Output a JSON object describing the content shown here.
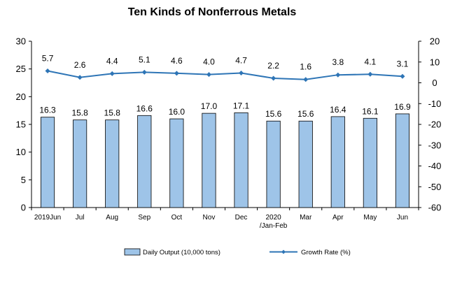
{
  "chart_data": {
    "type": "bar",
    "title": "Ten Kinds of Nonferrous Metals",
    "categories": [
      "2019Jun",
      "Jul",
      "Aug",
      "Sep",
      "Oct",
      "Nov",
      "Dec",
      "2020\n/Jan-Feb",
      "Mar",
      "Apr",
      "May",
      "Jun"
    ],
    "series": [
      {
        "name": "Daily Output (10,000 tons)",
        "type": "bar",
        "axis": "left",
        "values": [
          16.3,
          15.8,
          15.8,
          16.6,
          16.0,
          17.0,
          17.1,
          15.6,
          15.6,
          16.4,
          16.1,
          16.9
        ],
        "color": "#9ec4e8",
        "labels": [
          "16.3",
          "15.8",
          "15.8",
          "16.6",
          "16.0",
          "17.0",
          "17.1",
          "15.6",
          "15.6",
          "16.4",
          "16.1",
          "16.9"
        ]
      },
      {
        "name": "Growth Rate (%)",
        "type": "line",
        "axis": "right",
        "values": [
          5.7,
          2.6,
          4.4,
          5.1,
          4.6,
          4.0,
          4.7,
          2.2,
          1.6,
          3.8,
          4.1,
          3.1
        ],
        "color": "#2e75b6",
        "labels": [
          "5.7",
          "2.6",
          "4.4",
          "5.1",
          "4.6",
          "4.0",
          "4.7",
          "2.2",
          "1.6",
          "3.8",
          "4.1",
          "3.1"
        ]
      }
    ],
    "left_axis": {
      "ylim": [
        0,
        30
      ],
      "ticks": [
        "0",
        "5",
        "10",
        "15",
        "20",
        "25",
        "30"
      ]
    },
    "right_axis": {
      "ylim": [
        -60,
        20
      ],
      "ticks": [
        "-60",
        "-50",
        "-40",
        "-30",
        "-20",
        "-10",
        "0",
        "10",
        "20"
      ]
    },
    "grid": false,
    "legend_position": "bottom"
  }
}
